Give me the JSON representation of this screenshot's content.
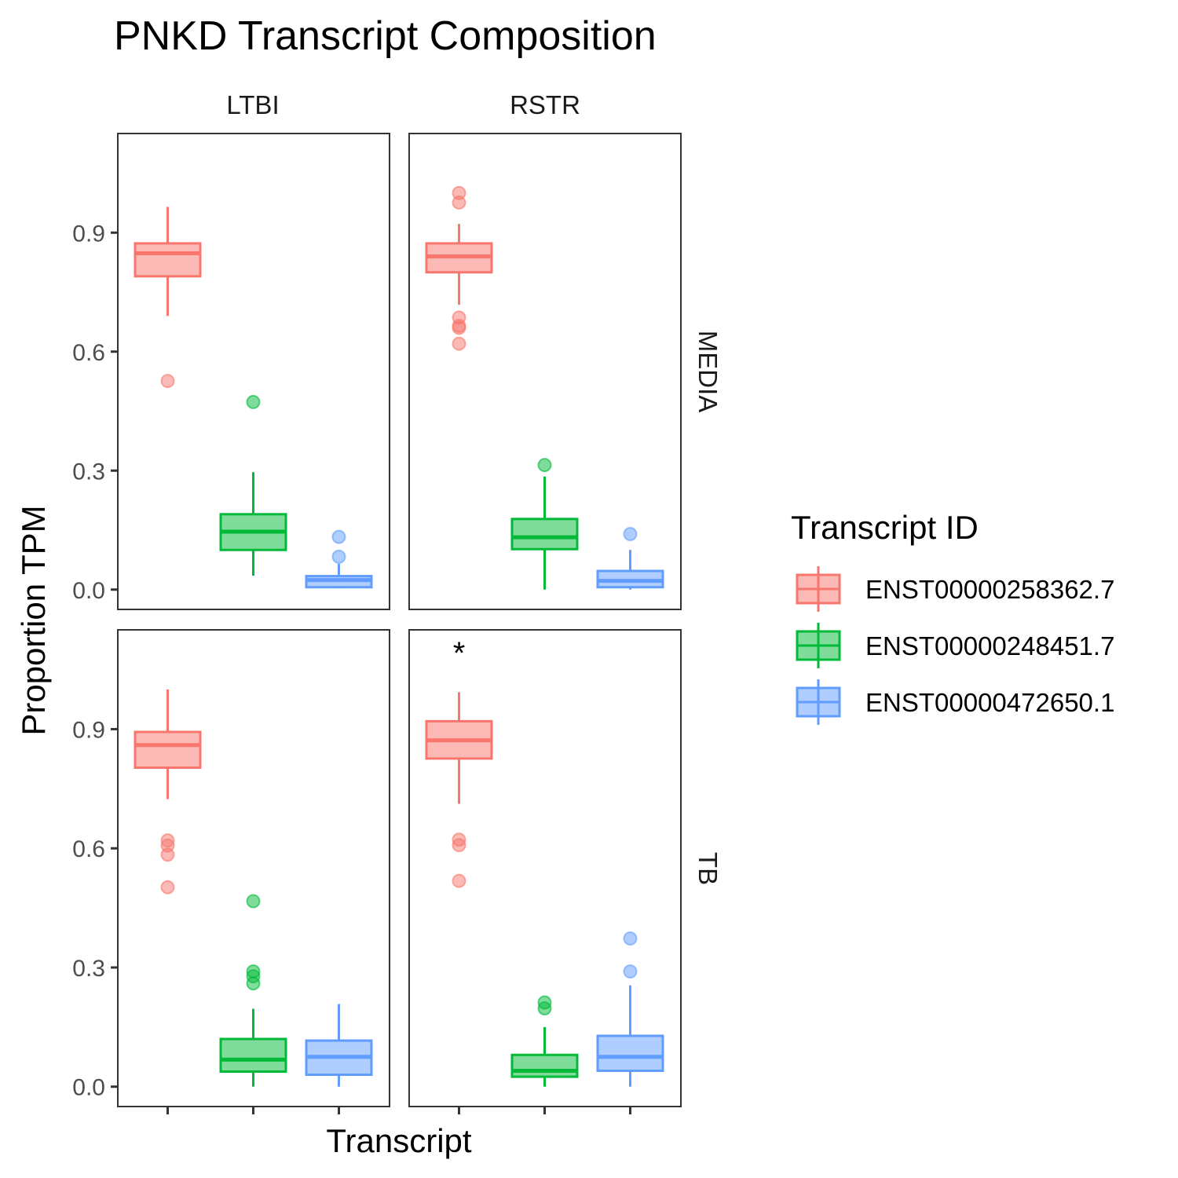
{
  "chart_data": {
    "type": "box",
    "title": "PNKD Transcript Composition",
    "xlabel": "Transcript",
    "ylabel": "Proportion TPM",
    "ylim": [
      -0.05,
      1.15
    ],
    "yticks": [
      0.0,
      0.3,
      0.6,
      0.9
    ],
    "ytick_labels": [
      "0.0",
      "0.3",
      "0.6",
      "0.9"
    ],
    "grid": false,
    "legend": {
      "title": "Transcript ID",
      "position": "right",
      "entries": [
        "ENST00000258362.7",
        "ENST00000248451.7",
        "ENST00000472650.1"
      ]
    },
    "colors": [
      "#F8766D",
      "#00BA38",
      "#619CFF"
    ],
    "col_facets": [
      "LTBI",
      "RSTR"
    ],
    "row_facets": [
      "MEDIA",
      "TB"
    ],
    "panels": [
      {
        "row": "MEDIA",
        "col": "LTBI",
        "annotation": "",
        "boxes": [
          {
            "series": "ENST00000258362.7",
            "lower_whisker": 0.69,
            "q1": 0.79,
            "median": 0.848,
            "q3": 0.873,
            "upper_whisker": 0.965,
            "outliers": [
              0.526
            ]
          },
          {
            "series": "ENST00000248451.7",
            "lower_whisker": 0.035,
            "q1": 0.1,
            "median": 0.146,
            "q3": 0.19,
            "upper_whisker": 0.296,
            "outliers": [
              0.473
            ]
          },
          {
            "series": "ENST00000472650.1",
            "lower_whisker": 0.003,
            "q1": 0.006,
            "median": 0.024,
            "q3": 0.034,
            "upper_whisker": 0.065,
            "outliers": [
              0.083,
              0.133
            ]
          }
        ]
      },
      {
        "row": "MEDIA",
        "col": "RSTR",
        "annotation": "",
        "boxes": [
          {
            "series": "ENST00000258362.7",
            "lower_whisker": 0.718,
            "q1": 0.8,
            "median": 0.84,
            "q3": 0.873,
            "upper_whisker": 0.922,
            "outliers": [
              0.62,
              0.66,
              0.665,
              0.686,
              0.976,
              1.0
            ]
          },
          {
            "series": "ENST00000248451.7",
            "lower_whisker": 0.0,
            "q1": 0.102,
            "median": 0.132,
            "q3": 0.178,
            "upper_whisker": 0.285,
            "outliers": [
              0.314
            ]
          },
          {
            "series": "ENST00000472650.1",
            "lower_whisker": 0.0,
            "q1": 0.006,
            "median": 0.022,
            "q3": 0.047,
            "upper_whisker": 0.1,
            "outliers": [
              0.14
            ]
          }
        ]
      },
      {
        "row": "TB",
        "col": "LTBI",
        "annotation": "",
        "boxes": [
          {
            "series": "ENST00000258362.7",
            "lower_whisker": 0.724,
            "q1": 0.803,
            "median": 0.86,
            "q3": 0.893,
            "upper_whisker": 1.0,
            "outliers": [
              0.502,
              0.584,
              0.607,
              0.62
            ]
          },
          {
            "series": "ENST00000248451.7",
            "lower_whisker": 0.0,
            "q1": 0.038,
            "median": 0.068,
            "q3": 0.12,
            "upper_whisker": 0.196,
            "outliers": [
              0.26,
              0.278,
              0.29,
              0.467
            ]
          },
          {
            "series": "ENST00000472650.1",
            "lower_whisker": 0.0,
            "q1": 0.03,
            "median": 0.075,
            "q3": 0.116,
            "upper_whisker": 0.208,
            "outliers": []
          }
        ]
      },
      {
        "row": "TB",
        "col": "RSTR",
        "annotation": "*",
        "boxes": [
          {
            "series": "ENST00000258362.7",
            "lower_whisker": 0.712,
            "q1": 0.826,
            "median": 0.872,
            "q3": 0.92,
            "upper_whisker": 0.993,
            "outliers": [
              0.518,
              0.608,
              0.622
            ]
          },
          {
            "series": "ENST00000248451.7",
            "lower_whisker": 0.0,
            "q1": 0.025,
            "median": 0.04,
            "q3": 0.08,
            "upper_whisker": 0.15,
            "outliers": [
              0.197,
              0.212
            ]
          },
          {
            "series": "ENST00000472650.1",
            "lower_whisker": 0.0,
            "q1": 0.04,
            "median": 0.075,
            "q3": 0.128,
            "upper_whisker": 0.255,
            "outliers": [
              0.29,
              0.373
            ]
          }
        ]
      }
    ]
  }
}
